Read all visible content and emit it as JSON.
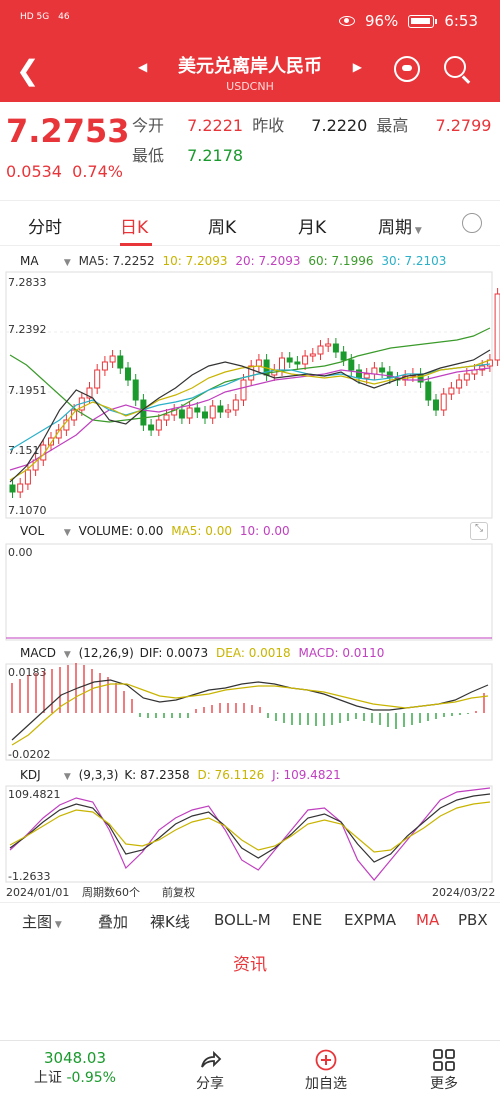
{
  "status": {
    "signal_left": [
      "HD 5G",
      "46"
    ],
    "battery": "96%",
    "time": "6:53"
  },
  "header": {
    "title": "美元兑离岸人民币",
    "code": "USDCNH"
  },
  "quote": {
    "price": "7.2753",
    "change": "0.0534",
    "change_pct": "0.74%",
    "open_label": "今开",
    "open": "7.2221",
    "prev_close_label": "昨收",
    "prev_close": "7.2220",
    "high_label": "最高",
    "high": "7.2799",
    "low_label": "最低",
    "low": "7.2178"
  },
  "tabs": [
    {
      "label": "分时"
    },
    {
      "label": "日K"
    },
    {
      "label": "周K"
    },
    {
      "label": "月K"
    },
    {
      "label": "周期"
    }
  ],
  "ma_line": {
    "title": "MA",
    "ma5": "MA5: 7.2252",
    "ma10": "10: 7.2093",
    "ma20": "20: 7.2093",
    "ma60": "60: 7.1996",
    "ma30": "30: 7.2103"
  },
  "price_axis": [
    "7.2833",
    "7.2392",
    "7.1951",
    "7.1511",
    "7.1070"
  ],
  "vol_line": {
    "title": "VOL",
    "volume": "VOLUME: 0.00",
    "ma5": "MA5: 0.00",
    "ma10": "10: 0.00",
    "axis": "0.00"
  },
  "macd_line": {
    "title": "MACD",
    "params": "(12,26,9)",
    "dif": "DIF: 0.0073",
    "dea": "DEA: 0.0018",
    "macd": "MACD: 0.0110",
    "axis_top": "0.0183",
    "axis_bottom": "-0.0202"
  },
  "kdj_line": {
    "title": "KDJ",
    "params": "(9,3,3)",
    "k": "K: 87.2358",
    "d": "D: 76.1126",
    "j": "J: 109.4821",
    "axis_top": "109.4821",
    "axis_bottom": "-1.2633"
  },
  "date_axis": {
    "start": "2024/01/01",
    "periods": "周期数60个",
    "adjust": "前复权",
    "end": "2024/03/22"
  },
  "bottom_tabs": [
    {
      "label": "主图"
    },
    {
      "label": "叠加"
    },
    {
      "label": "裸K线"
    },
    {
      "label": "BOLL-M"
    },
    {
      "label": "ENE"
    },
    {
      "label": "EXPMA"
    },
    {
      "label": "MA"
    },
    {
      "label": "PBX"
    }
  ],
  "news_label": "资讯",
  "footer": {
    "index_value": "3048.03",
    "index_name": "上证",
    "index_change": "-0.95%",
    "share": "分享",
    "add": "加自选",
    "more": "更多"
  },
  "colors": {
    "brand_red": "#e8353a",
    "up": "#e8353a",
    "down": "#1a9a2c",
    "ma5": "#333333",
    "ma10": "#c8b400",
    "ma20": "#c040c0",
    "ma60": "#3a9a2a",
    "ma30": "#2ab0c8"
  }
}
